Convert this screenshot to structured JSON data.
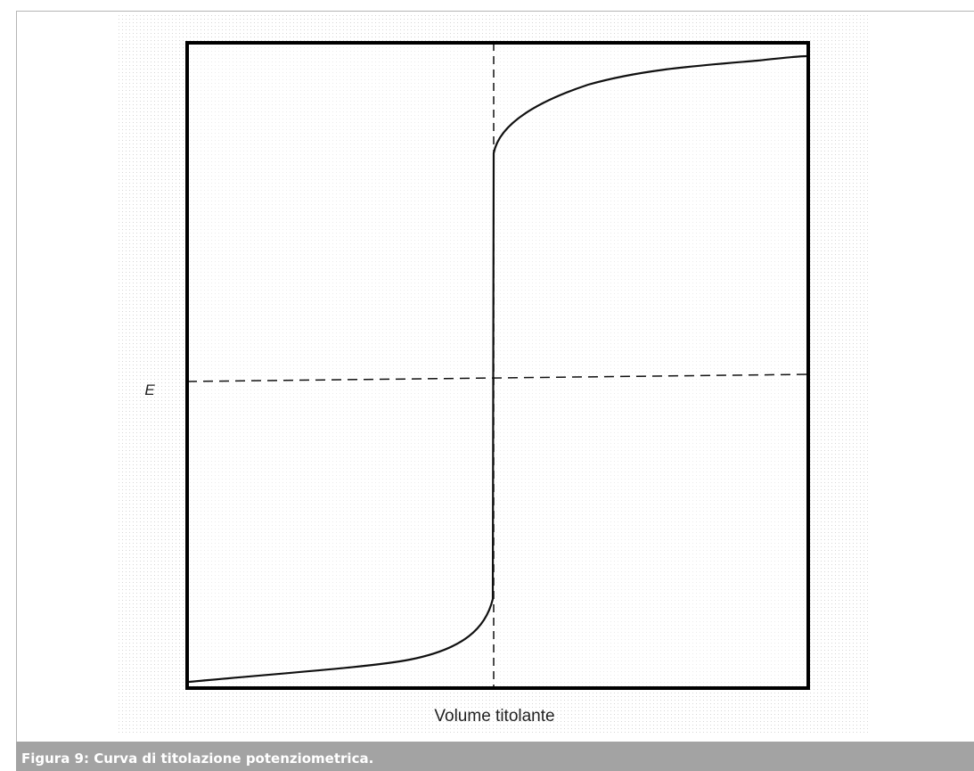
{
  "figure": {
    "y_label": "E",
    "x_label": "Volume titolante",
    "caption": "Figura 9: Curva di titolazione potenziometrica."
  }
}
